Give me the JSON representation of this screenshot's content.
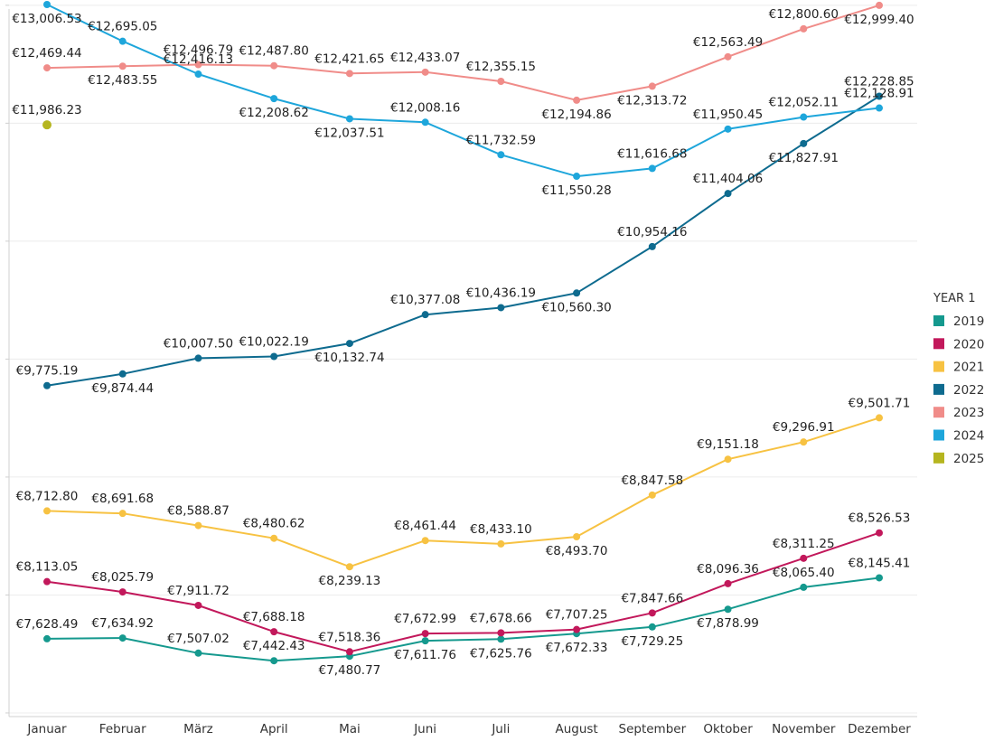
{
  "chart_data": {
    "type": "line",
    "legend": {
      "title": "YEAR 1",
      "position": "right"
    },
    "categories": [
      "Januar",
      "Februar",
      "März",
      "April",
      "Mai",
      "Juni",
      "Juli",
      "August",
      "September",
      "Oktober",
      "November",
      "Dezember"
    ],
    "ylim": [
      6500,
      13100
    ],
    "grid": true,
    "series": [
      {
        "name": "2019",
        "color": "#15998E",
        "values": [
          7628.49,
          7634.92,
          7507.02,
          7442.43,
          7480.77,
          7611.76,
          7625.76,
          7672.33,
          7729.25,
          7878.99,
          8065.4,
          8145.41
        ],
        "labels": [
          "€7,628.49",
          "€7,634.92",
          "€7,507.02",
          "€7,442.43",
          "€7,480.77",
          "€7,611.76",
          "€7,625.76",
          "€7,672.33",
          "€7,729.25",
          "€7,878.99",
          "€8,065.40",
          "€8,145.41"
        ],
        "label_pos": [
          "above",
          "above",
          "above",
          "above",
          "below",
          "below",
          "below",
          "below",
          "below",
          "below",
          "above",
          "above"
        ]
      },
      {
        "name": "2020",
        "color": "#C2185B",
        "values": [
          8113.05,
          8025.79,
          7911.72,
          7688.18,
          7518.36,
          7672.99,
          7678.66,
          7707.25,
          7847.66,
          8096.36,
          8311.25,
          8526.53
        ],
        "labels": [
          "€8,113.05",
          "€8,025.79",
          "€7,911.72",
          "€7,688.18",
          "€7,518.36",
          "€7,672.99",
          "€7,678.66",
          "€7,707.25",
          "€7,847.66",
          "€8,096.36",
          "€8,311.25",
          "€8,526.53"
        ],
        "label_pos": [
          "above",
          "above",
          "above",
          "above",
          "above",
          "above",
          "above",
          "above",
          "above",
          "above",
          "above",
          "above"
        ]
      },
      {
        "name": "2021",
        "color": "#F7C242",
        "values": [
          8712.8,
          8691.68,
          8588.87,
          8480.62,
          8239.13,
          8461.44,
          8433.1,
          8493.7,
          8847.58,
          9151.18,
          9296.91,
          9501.71
        ],
        "labels": [
          "€8,712.80",
          "€8,691.68",
          "€8,588.87",
          "€8,480.62",
          "€8,239.13",
          "€8,461.44",
          "€8,433.10",
          "€8,493.70",
          "€8,847.58",
          "€9,151.18",
          "€9,296.91",
          "€9,501.71"
        ],
        "label_pos": [
          "above",
          "above",
          "above",
          "above",
          "below",
          "above",
          "above",
          "below",
          "above",
          "above",
          "above",
          "above"
        ]
      },
      {
        "name": "2022",
        "color": "#0E6B8F",
        "values": [
          9775.19,
          9874.44,
          10007.5,
          10022.19,
          10132.74,
          10377.08,
          10436.19,
          10560.3,
          10954.16,
          11404.06,
          11827.91,
          12228.85
        ],
        "labels": [
          "€9,775.19",
          "€9,874.44",
          "€10,007.50",
          "€10,022.19",
          "€10,132.74",
          "€10,377.08",
          "€10,436.19",
          "€10,560.30",
          "€10,954.16",
          "€11,404.06",
          "€11,827.91",
          "€12,228.85"
        ],
        "label_pos": [
          "above",
          "below",
          "above",
          "above",
          "below",
          "above",
          "above",
          "below",
          "above",
          "above",
          "below",
          "above"
        ]
      },
      {
        "name": "2023",
        "color": "#F08C89",
        "values": [
          12469.44,
          12483.55,
          12496.79,
          12487.8,
          12421.65,
          12433.07,
          12355.15,
          12194.86,
          12313.72,
          12563.49,
          12800.6,
          12999.4
        ],
        "labels": [
          "€12,469.44",
          "€12,483.55",
          "€12,496.79",
          "€12,487.80",
          "€12,421.65",
          "€12,433.07",
          "€12,355.15",
          "€12,194.86",
          "€12,313.72",
          "€12,563.49",
          "€12,800.60",
          "€12,999.40"
        ],
        "label_pos": [
          "above",
          "below",
          "above",
          "above",
          "above",
          "above",
          "above",
          "below",
          "below",
          "above",
          "above",
          "below"
        ]
      },
      {
        "name": "2024",
        "color": "#1EA6DB",
        "values": [
          13006.53,
          12695.05,
          12416.13,
          12208.62,
          12037.51,
          12008.16,
          11732.59,
          11550.28,
          11616.68,
          11950.45,
          12052.11,
          12128.91
        ],
        "labels": [
          "€13,006.53",
          "€12,695.05",
          "€12,416.13",
          "€12,208.62",
          "€12,037.51",
          "€12,008.16",
          "€11,732.59",
          "€11,550.28",
          "€11,616.68",
          "€11,950.45",
          "€12,052.11",
          "€12,128.91"
        ],
        "label_pos": [
          "below",
          "above",
          "above",
          "below",
          "below",
          "above",
          "above",
          "below",
          "above",
          "above",
          "above",
          "above"
        ]
      },
      {
        "name": "2025",
        "color": "#B5B51F",
        "values": [
          11986.23,
          null,
          null,
          null,
          null,
          null,
          null,
          null,
          null,
          null,
          null,
          null
        ],
        "labels": [
          "€11,986.23",
          "",
          "",
          "",
          "",
          "",
          "",
          "",
          "",
          "",
          "",
          ""
        ],
        "label_pos": [
          "above",
          "above",
          "above",
          "above",
          "above",
          "above",
          "above",
          "above",
          "above",
          "above",
          "above",
          "above"
        ]
      }
    ]
  }
}
